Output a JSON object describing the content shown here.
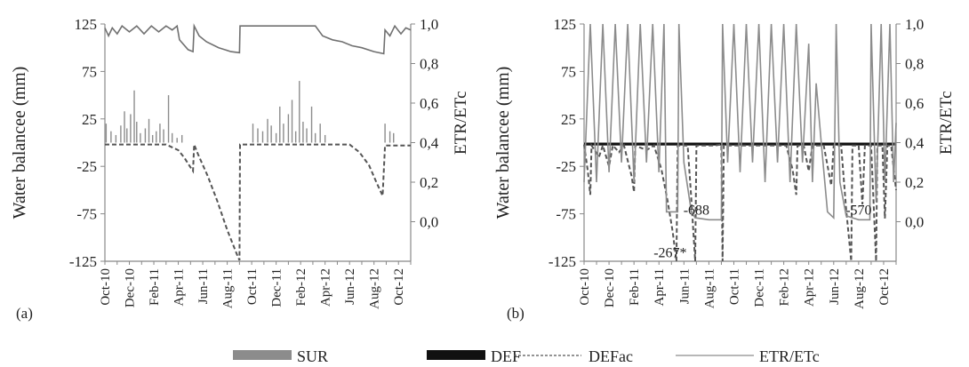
{
  "chart_data": [
    {
      "type": "line",
      "panel_label": "(a)",
      "ylabel": "Water balancee (mm)",
      "y2label": "ETR/ETc",
      "ylim": [
        -125,
        125
      ],
      "y2lim": [
        -0.2,
        1.0
      ],
      "yticks": [
        -125,
        -75,
        -25,
        25,
        75,
        125
      ],
      "y2ticks": [
        "1,0",
        "0,8",
        "0,6",
        "0,4",
        "0,2",
        "0,0"
      ],
      "y2tick_values": [
        1.0,
        0.8,
        0.6,
        0.4,
        0.2,
        0.0
      ],
      "xticks": [
        "Oct-10",
        "Dec-10",
        "Feb-11",
        "Apr-11",
        "Jun-11",
        "Aug-11",
        "Oct-11",
        "Dec-11",
        "Feb-12",
        "Apr-12",
        "Jun-12",
        "Aug-12",
        "Oct-12"
      ],
      "x_range_months": [
        0,
        25
      ],
      "series": [
        {
          "name": "SUR",
          "style": "bars",
          "color": "#8c8c8c",
          "points": [
            [
              0.1,
              20
            ],
            [
              0.5,
              12
            ],
            [
              0.9,
              8
            ],
            [
              1.3,
              18
            ],
            [
              1.6,
              33
            ],
            [
              1.8,
              15
            ],
            [
              2.1,
              30
            ],
            [
              2.4,
              55
            ],
            [
              2.6,
              22
            ],
            [
              2.9,
              10
            ],
            [
              3.3,
              15
            ],
            [
              3.6,
              25
            ],
            [
              3.9,
              8
            ],
            [
              4.2,
              12
            ],
            [
              4.5,
              20
            ],
            [
              4.8,
              14
            ],
            [
              5.2,
              50
            ],
            [
              5.5,
              10
            ],
            [
              5.9,
              5
            ],
            [
              6.3,
              8
            ],
            [
              12.1,
              20
            ],
            [
              12.5,
              15
            ],
            [
              12.9,
              12
            ],
            [
              13.3,
              25
            ],
            [
              13.6,
              18
            ],
            [
              14.0,
              10
            ],
            [
              14.3,
              38
            ],
            [
              14.6,
              20
            ],
            [
              15.0,
              30
            ],
            [
              15.3,
              45
            ],
            [
              15.6,
              12
            ],
            [
              15.9,
              65
            ],
            [
              16.2,
              22
            ],
            [
              16.5,
              15
            ],
            [
              16.9,
              38
            ],
            [
              17.2,
              10
            ],
            [
              17.6,
              20
            ],
            [
              18.0,
              8
            ],
            [
              22.9,
              20
            ],
            [
              23.3,
              12
            ],
            [
              23.6,
              10
            ]
          ]
        },
        {
          "name": "DEF",
          "style": "bars",
          "color": "#111111",
          "points": []
        },
        {
          "name": "DEFac",
          "style": "dashed",
          "color": "#555555",
          "points": [
            [
              0,
              -2
            ],
            [
              5,
              -2
            ],
            [
              6,
              -8
            ],
            [
              6.5,
              -16
            ],
            [
              7.0,
              -26
            ],
            [
              7.2,
              -30
            ],
            [
              7.3,
              -2
            ],
            [
              7.6,
              -12
            ],
            [
              8.4,
              -35
            ],
            [
              9.2,
              -62
            ],
            [
              10.0,
              -92
            ],
            [
              10.8,
              -118
            ],
            [
              11.0,
              -124
            ],
            [
              11.05,
              -2
            ],
            [
              12,
              -2
            ],
            [
              20,
              -2
            ],
            [
              20.8,
              -10
            ],
            [
              21.6,
              -24
            ],
            [
              22.2,
              -42
            ],
            [
              22.7,
              -56
            ],
            [
              22.9,
              -3
            ],
            [
              25,
              -3
            ]
          ]
        },
        {
          "name": "ETR/ETc",
          "style": "line",
          "color": "#707070",
          "axis": "right",
          "points": [
            [
              0,
              0.98
            ],
            [
              0.3,
              0.94
            ],
            [
              0.6,
              0.98
            ],
            [
              1.0,
              0.95
            ],
            [
              1.4,
              0.99
            ],
            [
              2.0,
              0.96
            ],
            [
              2.6,
              0.99
            ],
            [
              3.2,
              0.95
            ],
            [
              3.8,
              0.99
            ],
            [
              4.4,
              0.96
            ],
            [
              5.0,
              0.99
            ],
            [
              5.5,
              0.97
            ],
            [
              5.9,
              0.99
            ],
            [
              6.1,
              0.92
            ],
            [
              6.8,
              0.87
            ],
            [
              7.2,
              0.86
            ],
            [
              7.3,
              0.99
            ],
            [
              7.7,
              0.94
            ],
            [
              8.3,
              0.91
            ],
            [
              9.3,
              0.88
            ],
            [
              10.3,
              0.86
            ],
            [
              11.0,
              0.855
            ],
            [
              11.05,
              0.99
            ],
            [
              12,
              0.99
            ],
            [
              14,
              0.99
            ],
            [
              16,
              0.99
            ],
            [
              17.2,
              0.99
            ],
            [
              17.8,
              0.94
            ],
            [
              18.6,
              0.92
            ],
            [
              19.4,
              0.91
            ],
            [
              20.2,
              0.89
            ],
            [
              21.0,
              0.88
            ],
            [
              22.0,
              0.86
            ],
            [
              22.8,
              0.85
            ],
            [
              22.9,
              0.97
            ],
            [
              23.3,
              0.94
            ],
            [
              23.7,
              0.99
            ],
            [
              24.2,
              0.95
            ],
            [
              24.6,
              0.98
            ],
            [
              25,
              0.97
            ]
          ]
        }
      ]
    },
    {
      "type": "line",
      "panel_label": "(b)",
      "ylabel": "Water balancee (mm)",
      "y2label": "ETR/ETc",
      "ylim": [
        -125,
        125
      ],
      "y2lim": [
        -0.2,
        1.0
      ],
      "yticks": [
        -125,
        -75,
        -25,
        25,
        75,
        125
      ],
      "y2ticks": [
        "1,0",
        "0,8",
        "0,6",
        "0,4",
        "0,2",
        "0,0"
      ],
      "y2tick_values": [
        1.0,
        0.8,
        0.6,
        0.4,
        0.2,
        0.0
      ],
      "xticks": [
        "Oct-10",
        "Dec-10",
        "Feb-11",
        "Apr-11",
        "Jun-11",
        "Aug-11",
        "Oct-11",
        "Dec-11",
        "Feb-12",
        "Apr-12",
        "Jun-12",
        "Aug-12",
        "Oct-12"
      ],
      "x_range_months": [
        0,
        25
      ],
      "annotations": [
        {
          "text": "-267*",
          "x": 6.9,
          "y": -115
        },
        {
          "text": "-688",
          "x": 9.0,
          "y": -70
        },
        {
          "text": "-570",
          "x": 22.0,
          "y": -70
        }
      ],
      "series": [
        {
          "name": "SUR",
          "style": "bars",
          "color": "#8c8c8c",
          "points": []
        },
        {
          "name": "DEF",
          "style": "band",
          "color": "#111111",
          "range": [
            [
              0,
              25
            ]
          ],
          "y": [
            -3,
            0
          ]
        },
        {
          "name": "DEFac",
          "style": "dashed",
          "color": "#555555",
          "points": [
            [
              0,
              -2
            ],
            [
              0.3,
              -30
            ],
            [
              0.5,
              -55
            ],
            [
              0.6,
              -3
            ],
            [
              1.2,
              -15
            ],
            [
              1.5,
              -3
            ],
            [
              2.0,
              -25
            ],
            [
              2.3,
              -3
            ],
            [
              2.8,
              -10
            ],
            [
              3.2,
              -3
            ],
            [
              3.8,
              -35
            ],
            [
              4.0,
              -52
            ],
            [
              4.1,
              -3
            ],
            [
              5.0,
              -8
            ],
            [
              5.6,
              -3
            ],
            [
              6.2,
              -28
            ],
            [
              6.7,
              -62
            ],
            [
              7.1,
              -94
            ],
            [
              7.4,
              -125
            ],
            [
              7.5,
              -3
            ],
            [
              8.3,
              -3
            ],
            [
              8.6,
              -60
            ],
            [
              8.9,
              -125
            ],
            [
              9.0,
              -3
            ],
            [
              10.5,
              -3
            ],
            [
              11.0,
              -2
            ],
            [
              11.1,
              -125
            ],
            [
              11.2,
              -3
            ],
            [
              14,
              -3
            ],
            [
              16.2,
              -3
            ],
            [
              16.7,
              -28
            ],
            [
              17.0,
              -55
            ],
            [
              17.1,
              -3
            ],
            [
              17.6,
              -3
            ],
            [
              18.0,
              -30
            ],
            [
              18.3,
              -3
            ],
            [
              19.2,
              -3
            ],
            [
              19.8,
              -45
            ],
            [
              20.0,
              -3
            ],
            [
              20.6,
              -3
            ],
            [
              21.0,
              -70
            ],
            [
              21.4,
              -125
            ],
            [
              21.5,
              -3
            ],
            [
              22.0,
              -3
            ],
            [
              22.3,
              -65
            ],
            [
              22.5,
              -3
            ],
            [
              23.0,
              -3
            ],
            [
              23.4,
              -125
            ],
            [
              23.5,
              -3
            ],
            [
              23.9,
              -3
            ],
            [
              24.1,
              -80
            ],
            [
              24.3,
              -3
            ],
            [
              24.6,
              -3
            ],
            [
              25,
              -50
            ]
          ]
        },
        {
          "name": "ETR/ETc",
          "style": "line",
          "color": "#8c8c8c",
          "axis": "right",
          "points": [
            [
              0,
              0.2
            ],
            [
              0.5,
              1.0
            ],
            [
              1.0,
              0.2
            ],
            [
              1.5,
              1.0
            ],
            [
              2.0,
              0.25
            ],
            [
              2.5,
              1.0
            ],
            [
              3.0,
              0.3
            ],
            [
              3.5,
              1.0
            ],
            [
              4.0,
              0.2
            ],
            [
              4.5,
              1.0
            ],
            [
              5.0,
              0.3
            ],
            [
              5.5,
              1.0
            ],
            [
              6.0,
              0.25
            ],
            [
              6.4,
              1.0
            ],
            [
              6.6,
              0.05
            ],
            [
              7.5,
              0.05
            ],
            [
              7.6,
              1.0
            ],
            [
              8.0,
              0.3
            ],
            [
              8.6,
              0.05
            ],
            [
              8.9,
              0.02
            ],
            [
              10.0,
              0.01
            ],
            [
              11.0,
              0.01
            ],
            [
              11.1,
              1.0
            ],
            [
              11.5,
              0.3
            ],
            [
              12.0,
              1.0
            ],
            [
              12.5,
              0.25
            ],
            [
              13.0,
              1.0
            ],
            [
              13.5,
              0.3
            ],
            [
              14.0,
              1.0
            ],
            [
              14.5,
              0.2
            ],
            [
              15.0,
              1.0
            ],
            [
              15.5,
              0.3
            ],
            [
              16.0,
              1.0
            ],
            [
              16.5,
              0.2
            ],
            [
              17.0,
              1.0
            ],
            [
              17.5,
              0.3
            ],
            [
              18.0,
              0.9
            ],
            [
              18.3,
              0.2
            ],
            [
              18.6,
              0.7
            ],
            [
              19.0,
              0.4
            ],
            [
              19.5,
              0.05
            ],
            [
              20.0,
              0.02
            ],
            [
              20.2,
              1.0
            ],
            [
              20.5,
              0.2
            ],
            [
              21.0,
              0.03
            ],
            [
              21.5,
              0.02
            ],
            [
              22.0,
              0.01
            ],
            [
              22.9,
              0.01
            ],
            [
              23.0,
              1.0
            ],
            [
              23.4,
              0.1
            ],
            [
              23.8,
              1.0
            ],
            [
              24.1,
              0.2
            ],
            [
              24.5,
              1.0
            ],
            [
              24.8,
              0.2
            ],
            [
              25,
              0.5
            ]
          ]
        }
      ]
    }
  ],
  "legend": {
    "placement": "bottom",
    "items": [
      {
        "label": "SUR",
        "swatch": "block",
        "color": "#8c8c8c"
      },
      {
        "label": "DEF",
        "swatch": "block",
        "color": "#111111"
      },
      {
        "label": "DEFac",
        "swatch": "dashed",
        "color": "#555555"
      },
      {
        "label": "ETR/ETc",
        "swatch": "line",
        "color": "#8c8c8c"
      }
    ]
  }
}
